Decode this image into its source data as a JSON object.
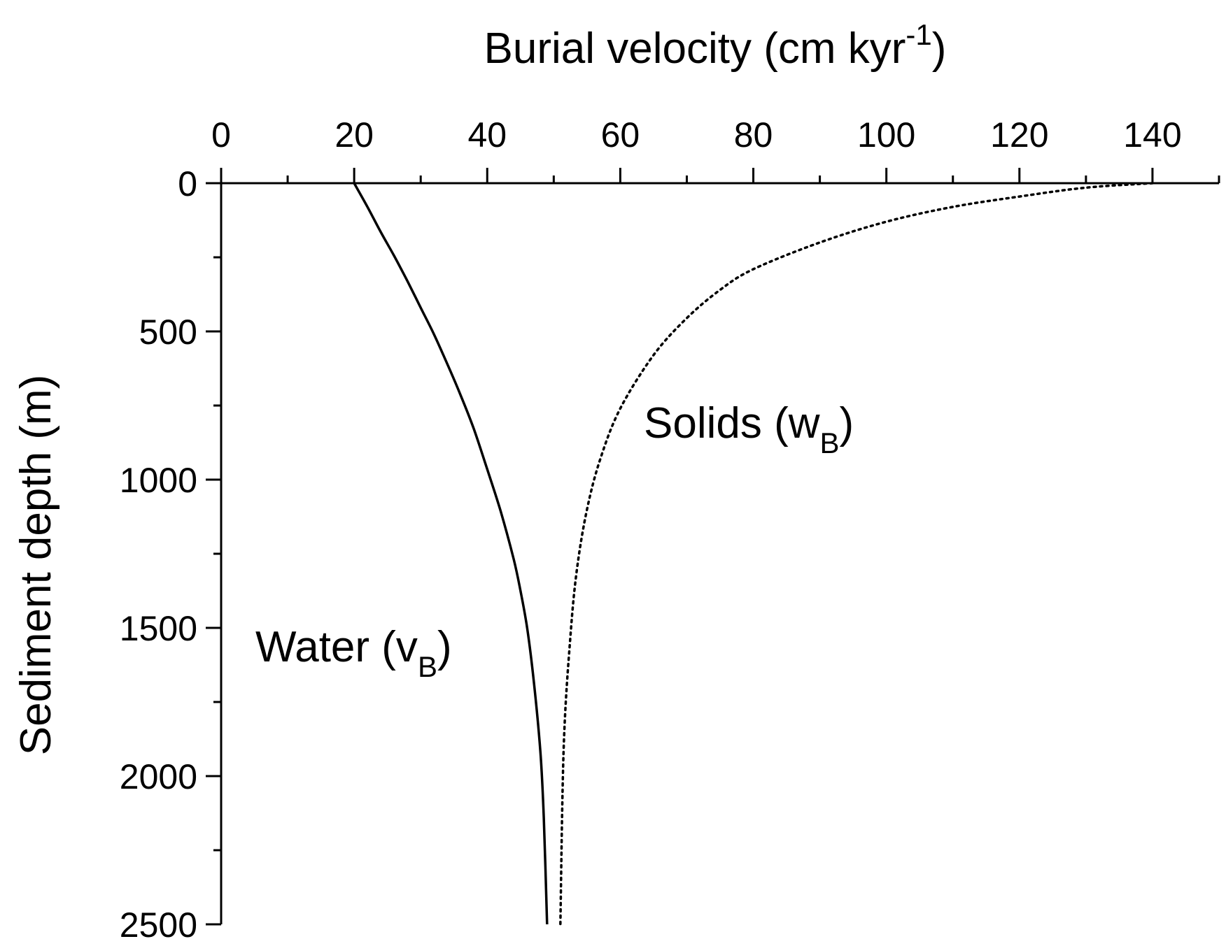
{
  "chart_data": {
    "type": "line",
    "xlabel": {
      "main": "Burial velocity (cm kyr",
      "superscript": "-1",
      "close": ")"
    },
    "ylabel": "Sediment depth (m)",
    "xlim": [
      0,
      150
    ],
    "ylim": [
      0,
      2500
    ],
    "y_inverted": true,
    "x_axis_position": "top",
    "grid": false,
    "x_ticks": [
      0,
      20,
      40,
      60,
      80,
      100,
      120,
      140
    ],
    "x_tick_labels": [
      "0",
      "20",
      "40",
      "60",
      "80",
      "100",
      "120",
      "140"
    ],
    "x_minor_step": 10,
    "y_ticks": [
      0,
      500,
      1000,
      1500,
      2000,
      2500
    ],
    "y_tick_labels": [
      "0",
      "500",
      "1000",
      "1500",
      "2000",
      "2500"
    ],
    "y_minor_step": 250,
    "annotations": [
      {
        "id": "solids",
        "text": "Solids (w",
        "subscript": "B",
        "close": ")"
      },
      {
        "id": "water",
        "text": "Water (v",
        "subscript": "B",
        "close": ")"
      }
    ],
    "series": [
      {
        "style": "solid",
        "x": [
          20,
          22,
          24,
          26,
          28,
          30,
          32,
          34,
          36,
          38,
          40,
          42,
          44,
          45,
          46,
          47,
          48,
          48.5,
          49
        ],
        "y": [
          0,
          80,
          165,
          245,
          330,
          420,
          510,
          610,
          715,
          830,
          965,
          1105,
          1270,
          1375,
          1500,
          1680,
          1920,
          2140,
          2500
        ]
      },
      {
        "style": "dotted",
        "x": [
          140,
          130,
          120,
          110,
          100,
          90,
          80,
          75,
          70,
          65,
          60,
          57,
          55,
          53.5,
          52.5,
          51.5,
          51
        ],
        "y": [
          0,
          15,
          45,
          80,
          130,
          200,
          290,
          360,
          455,
          580,
          760,
          930,
          1100,
          1300,
          1530,
          1900,
          2500
        ]
      }
    ]
  }
}
